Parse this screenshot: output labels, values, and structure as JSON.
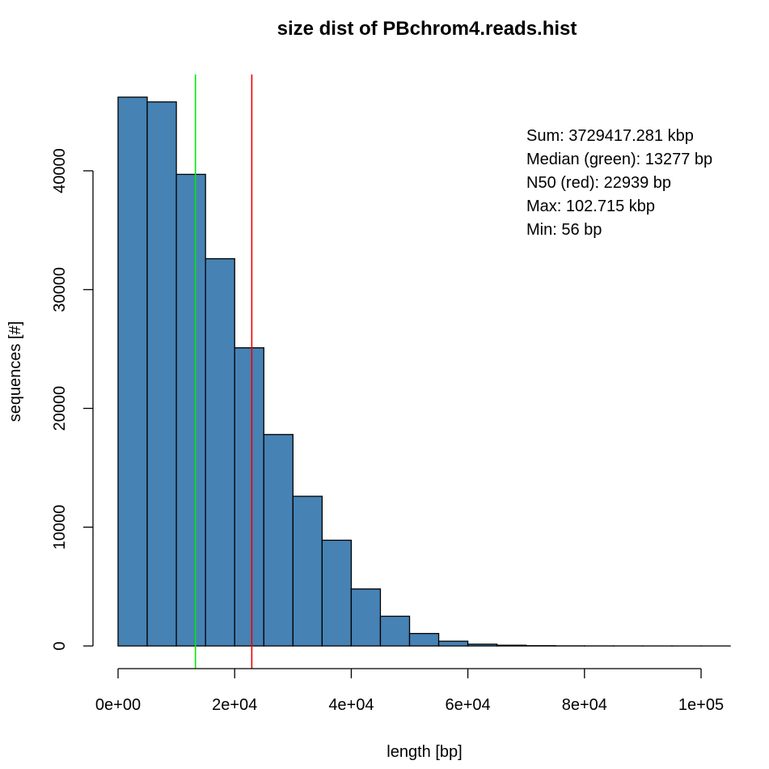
{
  "chart_data": {
    "type": "bar",
    "title": "size dist of PBchrom4.reads.hist",
    "xlabel": "length [bp]",
    "ylabel": "sequences [#]",
    "bin_width": 5000,
    "bins": [
      {
        "start": 0,
        "end": 5000,
        "count": 46200
      },
      {
        "start": 5000,
        "end": 10000,
        "count": 45800
      },
      {
        "start": 10000,
        "end": 15000,
        "count": 39700
      },
      {
        "start": 15000,
        "end": 20000,
        "count": 32600
      },
      {
        "start": 20000,
        "end": 25000,
        "count": 25100
      },
      {
        "start": 25000,
        "end": 30000,
        "count": 17800
      },
      {
        "start": 30000,
        "end": 35000,
        "count": 12600
      },
      {
        "start": 35000,
        "end": 40000,
        "count": 8900
      },
      {
        "start": 40000,
        "end": 45000,
        "count": 4800
      },
      {
        "start": 45000,
        "end": 50000,
        "count": 2500
      },
      {
        "start": 50000,
        "end": 55000,
        "count": 1050
      },
      {
        "start": 55000,
        "end": 60000,
        "count": 400
      },
      {
        "start": 60000,
        "end": 65000,
        "count": 150
      },
      {
        "start": 65000,
        "end": 70000,
        "count": 60
      },
      {
        "start": 70000,
        "end": 75000,
        "count": 25
      },
      {
        "start": 75000,
        "end": 80000,
        "count": 10
      },
      {
        "start": 80000,
        "end": 85000,
        "count": 5
      },
      {
        "start": 85000,
        "end": 90000,
        "count": 3
      },
      {
        "start": 90000,
        "end": 95000,
        "count": 2
      },
      {
        "start": 95000,
        "end": 100000,
        "count": 1
      },
      {
        "start": 100000,
        "end": 105000,
        "count": 1
      }
    ],
    "xlim": [
      0,
      105000
    ],
    "ylim": [
      0,
      48000
    ],
    "x_ticks": [
      {
        "value": 0,
        "label": "0e+00"
      },
      {
        "value": 20000,
        "label": "2e+04"
      },
      {
        "value": 40000,
        "label": "4e+04"
      },
      {
        "value": 60000,
        "label": "6e+04"
      },
      {
        "value": 80000,
        "label": "8e+04"
      },
      {
        "value": 100000,
        "label": "1e+05"
      }
    ],
    "y_ticks": [
      {
        "value": 0,
        "label": "0"
      },
      {
        "value": 10000,
        "label": "10000"
      },
      {
        "value": 20000,
        "label": "20000"
      },
      {
        "value": 30000,
        "label": "30000"
      },
      {
        "value": 40000,
        "label": "40000"
      }
    ],
    "vlines": [
      {
        "value": 13277,
        "color": "#00ee00"
      },
      {
        "value": 22939,
        "color": "#ee0000"
      }
    ],
    "annotations": [
      "Sum: 3729417.281 kbp",
      "Median (green): 13277 bp",
      "N50 (red): 22939 bp",
      "Max: 102.715 kbp",
      "Min: 56 bp"
    ],
    "bar_color": "#4682b4",
    "legend": "top-right",
    "grid": false
  }
}
